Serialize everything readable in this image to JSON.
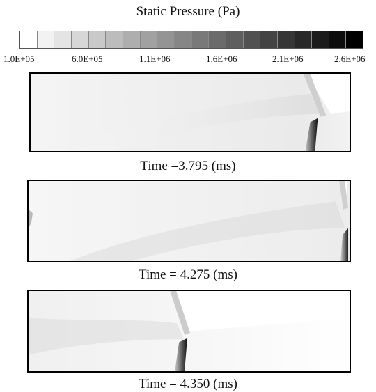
{
  "colorbar": {
    "title": "Static Pressure (Pa)",
    "tick_labels": [
      "1.0E+05",
      "6.0E+05",
      "1.1E+06",
      "1.6E+06",
      "2.1E+06",
      "2.6E+06"
    ],
    "level_count": 20,
    "color_low": "#ffffff",
    "color_high": "#000000"
  },
  "frames": [
    {
      "caption": "Time =3.795 (ms)"
    },
    {
      "caption": "Time = 4.275 (ms)"
    },
    {
      "caption": "Time = 4.350 (ms)"
    }
  ]
}
